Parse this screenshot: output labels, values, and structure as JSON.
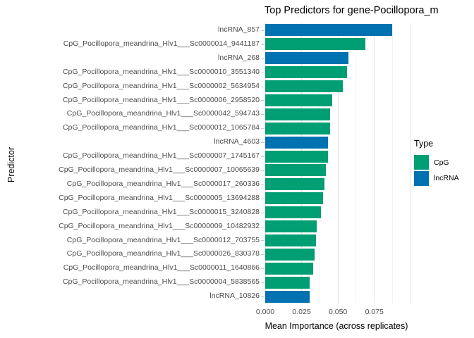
{
  "title": "Top Predictors for gene-Pocillopora_m",
  "axes": {
    "x_label": "Mean Importance (across replicates)",
    "y_label": "Predictor"
  },
  "legend": {
    "title": "Type",
    "entries": [
      {
        "label": "CpG",
        "color": "#009E73"
      },
      {
        "label": "lncRNA",
        "color": "#0072B2"
      }
    ]
  },
  "colors": {
    "cpg": "#009E73",
    "lncrna": "#0072B2",
    "axis_text": "#4d4d4d",
    "grid_major": "#e3e3e3",
    "grid_minor": "#f2f2f2",
    "background": "#ffffff"
  },
  "chart_data": {
    "type": "bar",
    "orientation": "horizontal",
    "title": "Top Predictors for gene-Pocillopora_m",
    "xlabel": "Mean Importance (across replicates)",
    "ylabel": "Predictor",
    "xlim": [
      0,
      0.1
    ],
    "grid": true,
    "legend_position": "right",
    "legend_title": "Type",
    "series_colors": {
      "CpG": "#009E73",
      "lncRNA": "#0072B2"
    },
    "x_ticks": [
      {
        "label": "0.000",
        "value": 0.0
      },
      {
        "label": "0.025",
        "value": 0.025
      },
      {
        "label": "0.050",
        "value": 0.05
      },
      {
        "label": "0.075",
        "value": 0.075
      }
    ],
    "gridlines": {
      "major": [
        0.0,
        0.025,
        0.05,
        0.075,
        0.1
      ],
      "minor": [
        0.0125,
        0.0375,
        0.0625,
        0.0875
      ]
    },
    "bars": [
      {
        "predictor": "lncRNA_857",
        "type": "lncRNA",
        "value": 0.0873
      },
      {
        "predictor": "CpG_Pocillopora_meandrina_Hlv1___Sc0000014_9441187",
        "type": "CpG",
        "value": 0.069
      },
      {
        "predictor": "lncRNA_268",
        "type": "lncRNA",
        "value": 0.0572
      },
      {
        "predictor": "CpG_Pocillopora_meandrina_Hlv1___Sc0000010_3551340",
        "type": "CpG",
        "value": 0.0561
      },
      {
        "predictor": "CpG_Pocillopora_meandrina_Hlv1___Sc0000002_5634954",
        "type": "CpG",
        "value": 0.0535
      },
      {
        "predictor": "CpG_Pocillopora_meandrina_Hlv1___Sc0000006_2958520",
        "type": "CpG",
        "value": 0.0459
      },
      {
        "predictor": "CpG_Pocillopora_meandrina_Hlv1___Sc0000042_594743",
        "type": "CpG",
        "value": 0.0448
      },
      {
        "predictor": "CpG_Pocillopora_meandrina_Hlv1___Sc0000012_1065784",
        "type": "CpG",
        "value": 0.0446
      },
      {
        "predictor": "lncRNA_4603",
        "type": "lncRNA",
        "value": 0.0431
      },
      {
        "predictor": "CpG_Pocillopora_meandrina_Hlv1___Sc0000007_1745167",
        "type": "CpG",
        "value": 0.0429
      },
      {
        "predictor": "CpG_Pocillopora_meandrina_Hlv1___Sc0000007_10065639",
        "type": "CpG",
        "value": 0.0415
      },
      {
        "predictor": "CpG_Pocillopora_meandrina_Hlv1___Sc0000017_260336",
        "type": "CpG",
        "value": 0.0406
      },
      {
        "predictor": "CpG_Pocillopora_meandrina_Hlv1___Sc0000005_13694288",
        "type": "CpG",
        "value": 0.0396
      },
      {
        "predictor": "CpG_Pocillopora_meandrina_Hlv1___Sc0000015_3240828",
        "type": "CpG",
        "value": 0.0384
      },
      {
        "predictor": "CpG_Pocillopora_meandrina_Hlv1___Sc0000009_10482932",
        "type": "CpG",
        "value": 0.0355
      },
      {
        "predictor": "CpG_Pocillopora_meandrina_Hlv1___Sc0000012_703755",
        "type": "CpG",
        "value": 0.0349
      },
      {
        "predictor": "CpG_Pocillopora_meandrina_Hlv1___Sc0000026_830378",
        "type": "CpG",
        "value": 0.0339
      },
      {
        "predictor": "CpG_Pocillopora_meandrina_Hlv1___Sc0000011_1640866",
        "type": "CpG",
        "value": 0.0331
      },
      {
        "predictor": "CpG_Pocillopora_meandrina_Hlv1___Sc0000004_5838565",
        "type": "CpG",
        "value": 0.0307
      },
      {
        "predictor": "lncRNA_10826",
        "type": "lncRNA",
        "value": 0.0305
      }
    ]
  }
}
